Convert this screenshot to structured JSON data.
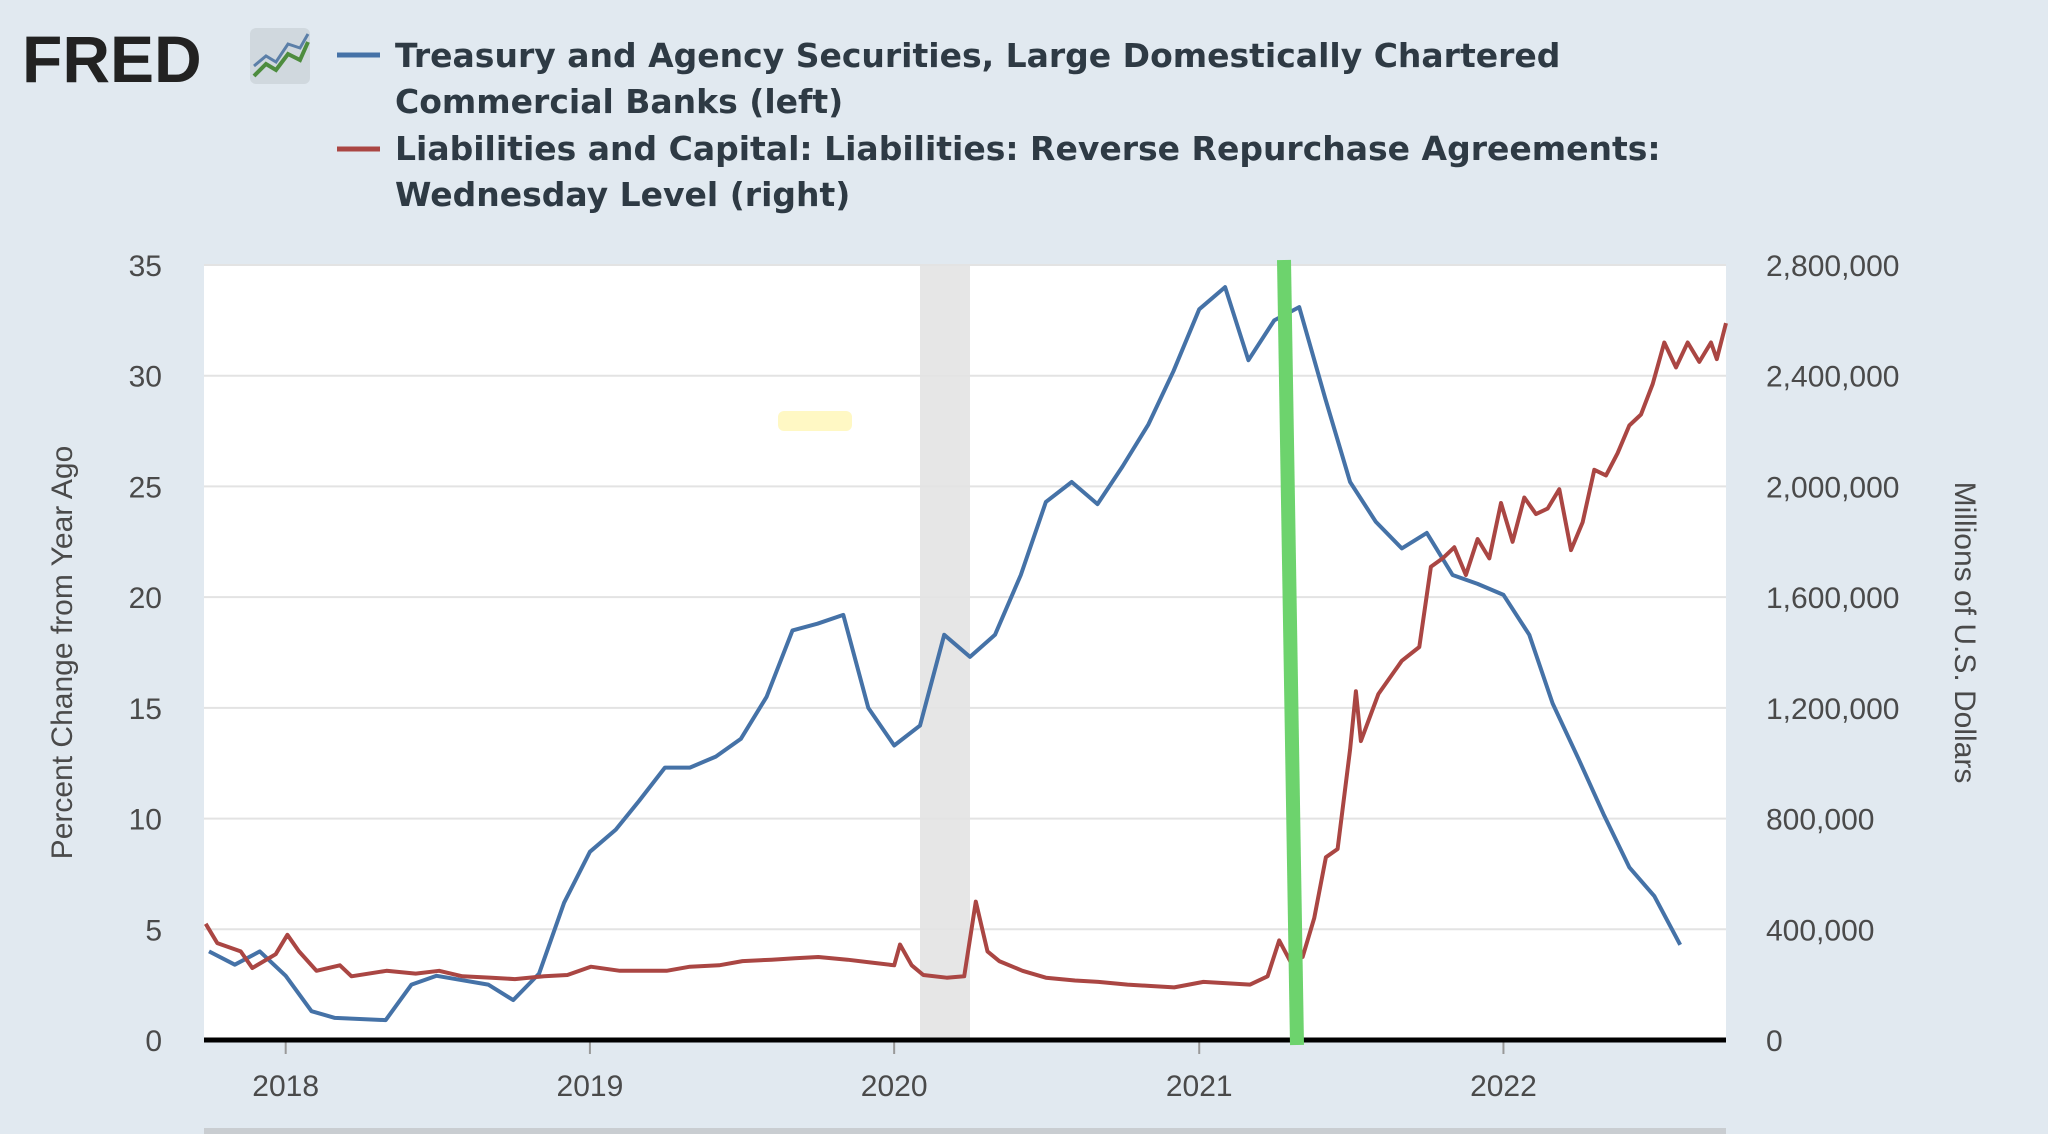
{
  "brand": {
    "name": "FRED"
  },
  "colors": {
    "background": "#e1e9f0",
    "plot_bg": "#ffffff",
    "series1": "#4572a7",
    "series2": "#aa4643",
    "recession": "#e6e6e6",
    "annotation_line": "#6dd36d",
    "highlight": "#fff8c4"
  },
  "chart_data": {
    "type": "line",
    "xticks": [
      "2018",
      "2019",
      "2020",
      "2021",
      "2022"
    ],
    "x_range": [
      "2017-09-25",
      "2022-09-25"
    ],
    "yaxis_left": {
      "label": "Percent Change from Year Ago",
      "range": [
        0,
        35
      ],
      "ticks": [
        "0",
        "5",
        "10",
        "15",
        "20",
        "25",
        "30",
        "35"
      ]
    },
    "yaxis_right": {
      "label": "Millions of U.S. Dollars",
      "range": [
        0,
        2800000
      ],
      "ticks": [
        "0",
        "400,000",
        "800,000",
        "1,200,000",
        "1,600,000",
        "2,000,000",
        "2,400,000",
        "2,800,000"
      ]
    },
    "recession_band": [
      "2020-02-01",
      "2020-04-01"
    ],
    "grid": true,
    "legend_position": "top",
    "series": [
      {
        "name": "Treasury and Agency Securities, Large Domestically Chartered Commercial Banks (left)",
        "axis": "left",
        "points": [
          [
            "2017-10-01",
            4.0
          ],
          [
            "2017-11-01",
            3.4
          ],
          [
            "2017-12-01",
            4.0
          ],
          [
            "2018-01-01",
            2.9
          ],
          [
            "2018-02-01",
            1.3
          ],
          [
            "2018-03-01",
            1.0
          ],
          [
            "2018-05-01",
            0.9
          ],
          [
            "2018-06-01",
            2.5
          ],
          [
            "2018-07-01",
            2.9
          ],
          [
            "2018-09-01",
            2.5
          ],
          [
            "2018-10-01",
            1.8
          ],
          [
            "2018-11-01",
            3.0
          ],
          [
            "2018-12-01",
            6.2
          ],
          [
            "2019-01-01",
            8.5
          ],
          [
            "2019-02-01",
            9.5
          ],
          [
            "2019-03-01",
            10.8
          ],
          [
            "2019-04-01",
            12.3
          ],
          [
            "2019-05-01",
            12.3
          ],
          [
            "2019-06-01",
            12.8
          ],
          [
            "2019-07-01",
            13.6
          ],
          [
            "2019-08-01",
            15.5
          ],
          [
            "2019-09-01",
            18.5
          ],
          [
            "2019-10-01",
            18.8
          ],
          [
            "2019-11-01",
            19.2
          ],
          [
            "2019-12-01",
            15.0
          ],
          [
            "2020-01-01",
            13.3
          ],
          [
            "2020-02-01",
            14.2
          ],
          [
            "2020-03-01",
            18.3
          ],
          [
            "2020-04-01",
            17.3
          ],
          [
            "2020-05-01",
            18.3
          ],
          [
            "2020-06-01",
            21.0
          ],
          [
            "2020-07-01",
            24.3
          ],
          [
            "2020-08-01",
            25.2
          ],
          [
            "2020-09-01",
            24.2
          ],
          [
            "2020-10-01",
            25.9
          ],
          [
            "2020-11-01",
            27.8
          ],
          [
            "2020-12-01",
            30.2
          ],
          [
            "2021-01-01",
            33.0
          ],
          [
            "2021-02-01",
            34.0
          ],
          [
            "2021-03-01",
            30.7
          ],
          [
            "2021-04-01",
            32.5
          ],
          [
            "2021-05-01",
            33.1
          ],
          [
            "2021-06-01",
            29.0
          ],
          [
            "2021-07-01",
            25.2
          ],
          [
            "2021-08-01",
            23.4
          ],
          [
            "2021-09-01",
            22.2
          ],
          [
            "2021-10-01",
            22.9
          ],
          [
            "2021-11-01",
            21.0
          ],
          [
            "2021-12-01",
            20.6
          ],
          [
            "2022-01-01",
            20.1
          ],
          [
            "2022-02-01",
            18.3
          ],
          [
            "2022-03-01",
            15.2
          ],
          [
            "2022-04-01",
            12.7
          ],
          [
            "2022-05-01",
            10.2
          ],
          [
            "2022-06-01",
            7.8
          ],
          [
            "2022-07-01",
            6.5
          ],
          [
            "2022-08-01",
            4.3
          ]
        ]
      },
      {
        "name": "Liabilities and Capital: Liabilities: Reverse Repurchase Agreements: Wednesday Level (right)",
        "axis": "right",
        "points": [
          [
            "2017-09-27",
            420000
          ],
          [
            "2017-10-11",
            350000
          ],
          [
            "2017-11-08",
            320000
          ],
          [
            "2017-11-22",
            260000
          ],
          [
            "2017-12-20",
            310000
          ],
          [
            "2018-01-03",
            380000
          ],
          [
            "2018-01-17",
            320000
          ],
          [
            "2018-02-07",
            250000
          ],
          [
            "2018-03-07",
            270000
          ],
          [
            "2018-03-21",
            230000
          ],
          [
            "2018-05-02",
            250000
          ],
          [
            "2018-06-06",
            240000
          ],
          [
            "2018-07-04",
            250000
          ],
          [
            "2018-08-01",
            230000
          ],
          [
            "2018-09-05",
            225000
          ],
          [
            "2018-10-03",
            220000
          ],
          [
            "2018-11-07",
            230000
          ],
          [
            "2018-12-05",
            235000
          ],
          [
            "2019-01-02",
            265000
          ],
          [
            "2019-02-06",
            250000
          ],
          [
            "2019-04-03",
            250000
          ],
          [
            "2019-05-01",
            265000
          ],
          [
            "2019-06-05",
            270000
          ],
          [
            "2019-07-03",
            285000
          ],
          [
            "2019-08-07",
            290000
          ],
          [
            "2019-09-04",
            295000
          ],
          [
            "2019-10-02",
            300000
          ],
          [
            "2019-11-06",
            290000
          ],
          [
            "2019-12-04",
            280000
          ],
          [
            "2020-01-01",
            270000
          ],
          [
            "2020-01-08",
            345000
          ],
          [
            "2020-01-22",
            270000
          ],
          [
            "2020-02-05",
            235000
          ],
          [
            "2020-03-04",
            225000
          ],
          [
            "2020-03-25",
            230000
          ],
          [
            "2020-04-08",
            500000
          ],
          [
            "2020-04-22",
            320000
          ],
          [
            "2020-05-06",
            285000
          ],
          [
            "2020-06-03",
            250000
          ],
          [
            "2020-07-01",
            225000
          ],
          [
            "2020-08-05",
            215000
          ],
          [
            "2020-09-02",
            210000
          ],
          [
            "2020-10-07",
            200000
          ],
          [
            "2020-11-04",
            195000
          ],
          [
            "2020-12-02",
            190000
          ],
          [
            "2021-01-06",
            210000
          ],
          [
            "2021-02-03",
            205000
          ],
          [
            "2021-03-03",
            200000
          ],
          [
            "2021-03-24",
            230000
          ],
          [
            "2021-04-07",
            360000
          ],
          [
            "2021-04-21",
            280000
          ],
          [
            "2021-05-05",
            300000
          ],
          [
            "2021-05-19",
            440000
          ],
          [
            "2021-06-02",
            660000
          ],
          [
            "2021-06-16",
            690000
          ],
          [
            "2021-07-01",
            1050000
          ],
          [
            "2021-07-08",
            1260000
          ],
          [
            "2021-07-14",
            1080000
          ],
          [
            "2021-08-04",
            1250000
          ],
          [
            "2021-09-01",
            1370000
          ],
          [
            "2021-09-22",
            1420000
          ],
          [
            "2021-10-06",
            1710000
          ],
          [
            "2021-10-20",
            1740000
          ],
          [
            "2021-11-03",
            1780000
          ],
          [
            "2021-11-17",
            1680000
          ],
          [
            "2021-12-01",
            1810000
          ],
          [
            "2021-12-15",
            1740000
          ],
          [
            "2021-12-29",
            1940000
          ],
          [
            "2022-01-12",
            1800000
          ],
          [
            "2022-01-26",
            1960000
          ],
          [
            "2022-02-09",
            1900000
          ],
          [
            "2022-02-23",
            1920000
          ],
          [
            "2022-03-09",
            1990000
          ],
          [
            "2022-03-23",
            1770000
          ],
          [
            "2022-04-06",
            1870000
          ],
          [
            "2022-04-20",
            2060000
          ],
          [
            "2022-05-04",
            2040000
          ],
          [
            "2022-05-18",
            2120000
          ],
          [
            "2022-06-01",
            2220000
          ],
          [
            "2022-06-15",
            2260000
          ],
          [
            "2022-06-29",
            2370000
          ],
          [
            "2022-07-13",
            2520000
          ],
          [
            "2022-07-27",
            2430000
          ],
          [
            "2022-08-10",
            2520000
          ],
          [
            "2022-08-24",
            2450000
          ],
          [
            "2022-09-07",
            2520000
          ],
          [
            "2022-09-14",
            2460000
          ],
          [
            "2022-09-25",
            2590000
          ]
        ]
      }
    ]
  }
}
